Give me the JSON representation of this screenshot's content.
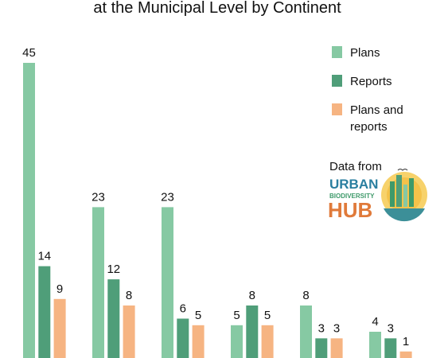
{
  "chart_data": {
    "type": "bar",
    "title": "at the Municipal Level by Continent",
    "categories": [
      "",
      "",
      "",
      "",
      "",
      ""
    ],
    "series": [
      {
        "name": "Plans",
        "color": "#86c9a3",
        "values": [
          45,
          23,
          23,
          5,
          8,
          4
        ]
      },
      {
        "name": "Reports",
        "color": "#4f9e79",
        "values": [
          14,
          12,
          6,
          8,
          3,
          3
        ]
      },
      {
        "name": "Plans and reports",
        "color": "#f6b482",
        "values": [
          9,
          8,
          5,
          5,
          3,
          1
        ]
      }
    ],
    "ylim": [
      0,
      45
    ],
    "grid": false,
    "legend_position": "top-right"
  },
  "legend": {
    "items": [
      {
        "lines": [
          "Plans"
        ]
      },
      {
        "lines": [
          "Reports"
        ]
      },
      {
        "lines": [
          "Plans and",
          "reports"
        ]
      }
    ]
  },
  "logo": {
    "caption": "Data from",
    "line1": "URBAN",
    "line2": "BIODIVERSITY",
    "line3": "HUB",
    "colors": {
      "urban": "#2a7fa0",
      "bio": "#3e9a6a",
      "hub": "#e07a3a",
      "sun": "#f4c24a"
    }
  }
}
